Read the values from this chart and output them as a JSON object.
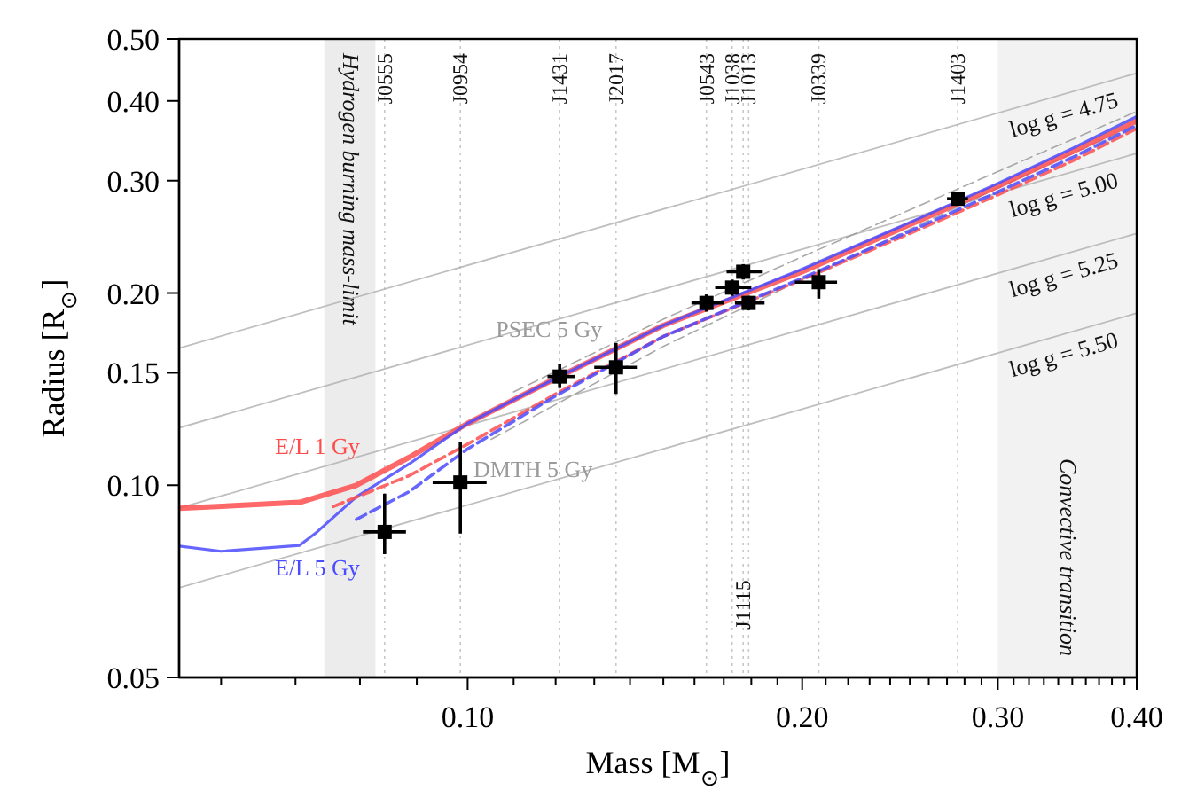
{
  "chart_data": {
    "type": "line",
    "xlabel": "Mass [M$_{⊙}$]",
    "ylabel": "Radius [R$_{⊙}$]",
    "log": "xy",
    "xlim": [
      0.055,
      0.4
    ],
    "ylim": [
      0.05,
      0.5
    ],
    "xticks": [
      {
        "value": 0.06,
        "label": null
      },
      {
        "value": 0.07,
        "label": null
      },
      {
        "value": 0.08,
        "label": null
      },
      {
        "value": 0.09,
        "label": null
      },
      {
        "value": 0.1,
        "label": "0.10"
      },
      {
        "value": 0.11,
        "label": null
      },
      {
        "value": 0.12,
        "label": null
      },
      {
        "value": 0.13,
        "label": null
      },
      {
        "value": 0.14,
        "label": null
      },
      {
        "value": 0.15,
        "label": null
      },
      {
        "value": 0.16,
        "label": null
      },
      {
        "value": 0.17,
        "label": null
      },
      {
        "value": 0.18,
        "label": null
      },
      {
        "value": 0.19,
        "label": null
      },
      {
        "value": 0.2,
        "label": "0.20"
      },
      {
        "value": 0.21,
        "label": null
      },
      {
        "value": 0.22,
        "label": null
      },
      {
        "value": 0.23,
        "label": null
      },
      {
        "value": 0.24,
        "label": null
      },
      {
        "value": 0.25,
        "label": null
      },
      {
        "value": 0.26,
        "label": null
      },
      {
        "value": 0.27,
        "label": null
      },
      {
        "value": 0.28,
        "label": null
      },
      {
        "value": 0.29,
        "label": null
      },
      {
        "value": 0.3,
        "label": "0.30"
      },
      {
        "value": 0.31,
        "label": null
      },
      {
        "value": 0.32,
        "label": null
      },
      {
        "value": 0.33,
        "label": null
      },
      {
        "value": 0.34,
        "label": null
      },
      {
        "value": 0.35,
        "label": null
      },
      {
        "value": 0.36,
        "label": null
      },
      {
        "value": 0.37,
        "label": null
      },
      {
        "value": 0.38,
        "label": null
      },
      {
        "value": 0.39,
        "label": null
      },
      {
        "value": 0.4,
        "label": "0.40"
      }
    ],
    "yticks": [
      {
        "value": 0.05,
        "label": "0.05"
      },
      {
        "value": 0.1,
        "label": "0.10"
      },
      {
        "value": 0.15,
        "label": "0.15"
      },
      {
        "value": 0.2,
        "label": "0.20"
      },
      {
        "value": 0.3,
        "label": "0.30"
      },
      {
        "value": 0.4,
        "label": "0.40"
      },
      {
        "value": 0.5,
        "label": "0.50"
      }
    ],
    "bands": [
      {
        "axis": "x",
        "from": 0.0743,
        "to": 0.0826,
        "label": "Hydrogen burning mass-limit",
        "color": "#ececec"
      },
      {
        "axis": "x",
        "from": 0.3,
        "to": 0.4,
        "label": "Convective transition",
        "color": "#f2f2f2"
      }
    ],
    "ref_lines": [
      {
        "axis": "x",
        "value": 0.0842,
        "label": "J0555"
      },
      {
        "axis": "x",
        "value": 0.0985,
        "label": "J0954"
      },
      {
        "axis": "x",
        "value": 0.121,
        "label": "J1431"
      },
      {
        "axis": "x",
        "value": 0.136,
        "label": "J2017"
      },
      {
        "axis": "x",
        "value": 0.164,
        "label": "J0543"
      },
      {
        "axis": "x",
        "value": 0.173,
        "label": "J1038"
      },
      {
        "axis": "x",
        "value": 0.177,
        "label": null
      },
      {
        "axis": "x",
        "value": 0.179,
        "label": "J1013"
      },
      {
        "axis": "x",
        "value": 0.207,
        "label": "J0339"
      },
      {
        "axis": "x",
        "value": 0.276,
        "label": "J1403"
      }
    ],
    "annotations": [
      {
        "text": "J1115",
        "x": 0.177,
        "y": 0.065
      }
    ],
    "series": [
      {
        "name": "log g = 4.75",
        "color": "#b3b3b3",
        "x": [
          0.055,
          0.4
        ],
        "values": [
          0.164,
          0.442
        ]
      },
      {
        "name": "log g = 5.00",
        "color": "#b3b3b3",
        "x": [
          0.055,
          0.4
        ],
        "values": [
          0.123,
          0.331
        ]
      },
      {
        "name": "log g = 5.25",
        "color": "#b3b3b3",
        "x": [
          0.055,
          0.4
        ],
        "values": [
          0.0921,
          0.248
        ]
      },
      {
        "name": "log g = 5.50",
        "color": "#b3b3b3",
        "x": [
          0.055,
          0.4
        ],
        "values": [
          0.0691,
          0.186
        ]
      },
      {
        "name": "PSEC 5 Gy",
        "color": "#9a9a9a",
        "line_style": "dashed",
        "x": [
          0.11,
          0.15,
          0.2,
          0.3,
          0.4
        ],
        "values": [
          0.14,
          0.182,
          0.228,
          0.31,
          0.385
        ]
      },
      {
        "name": "DMTH 5 Gy",
        "color": "#9a9a9a",
        "line_style": "dashed",
        "x": [
          0.105,
          0.15,
          0.2,
          0.3,
          0.4
        ],
        "values": [
          0.118,
          0.165,
          0.21,
          0.292,
          0.368
        ]
      },
      {
        "name": "E/L 1 Gy",
        "color": "#ff4d4d",
        "x": [
          0.055,
          0.0706,
          0.0794,
          0.0886,
          0.1,
          0.12,
          0.15,
          0.2,
          0.25,
          0.3,
          0.35,
          0.4
        ],
        "values": [
          0.092,
          0.094,
          0.1,
          0.1106,
          0.125,
          0.147,
          0.178,
          0.216,
          0.256,
          0.294,
          0.333,
          0.372
        ]
      },
      {
        "name": "E/L 5 Gy",
        "color": "#4b4bff",
        "x": [
          0.055,
          0.06,
          0.0706,
          0.0732,
          0.0794,
          0.0886,
          0.1,
          0.12,
          0.15,
          0.2,
          0.25,
          0.3,
          0.35,
          0.4
        ],
        "values": [
          0.0803,
          0.0788,
          0.0805,
          0.0845,
          0.0959,
          0.108,
          0.125,
          0.147,
          0.178,
          0.218,
          0.258,
          0.297,
          0.337,
          0.378
        ]
      },
      {
        "color": "#ff4d4d",
        "line_style": "dashed",
        "x": [
          0.0757,
          0.0886,
          0.1,
          0.12,
          0.15,
          0.2,
          0.25,
          0.3,
          0.35,
          0.4
        ],
        "values": [
          0.0926,
          0.1035,
          0.116,
          0.139,
          0.171,
          0.21,
          0.248,
          0.285,
          0.322,
          0.362
        ]
      },
      {
        "color": "#4b4bff",
        "line_style": "dashed",
        "x": [
          0.0794,
          0.0886,
          0.1,
          0.12,
          0.15,
          0.2,
          0.25,
          0.3,
          0.35,
          0.4
        ],
        "values": [
          0.0884,
          0.0977,
          0.114,
          0.138,
          0.171,
          0.211,
          0.25,
          0.288,
          0.326,
          0.366
        ]
      },
      {
        "type": "scatter",
        "color": "#000000",
        "marker": "square",
        "x": [
          0.0842,
          0.0985,
          0.121,
          0.136,
          0.164,
          0.173,
          0.177,
          0.179,
          0.207,
          0.276
        ],
        "values": [
          0.0845,
          0.101,
          0.148,
          0.153,
          0.193,
          0.204,
          0.216,
          0.193,
          0.208,
          0.281
        ],
        "xerrors": [
          [
            0.0805,
            0.088
          ],
          [
            0.093,
            0.104
          ],
          [
            0.118,
            0.125
          ],
          [
            0.13,
            0.142
          ],
          [
            0.159,
            0.17
          ],
          [
            0.167,
            0.18
          ],
          [
            0.171,
            0.184
          ],
          [
            0.174,
            0.185
          ],
          [
            0.197,
            0.215
          ],
          [
            0.27,
            0.282
          ]
        ],
        "errors": [
          [
            0.078,
            0.097
          ],
          [
            0.084,
            0.117
          ],
          [
            0.142,
            0.155
          ],
          [
            0.139,
            0.167
          ],
          [
            0.187,
            0.199
          ],
          [
            0.198,
            0.21
          ],
          [
            0.21,
            0.222
          ],
          [
            0.188,
            0.198
          ],
          [
            0.196,
            0.218
          ],
          [
            0.275,
            0.287
          ]
        ]
      }
    ]
  }
}
